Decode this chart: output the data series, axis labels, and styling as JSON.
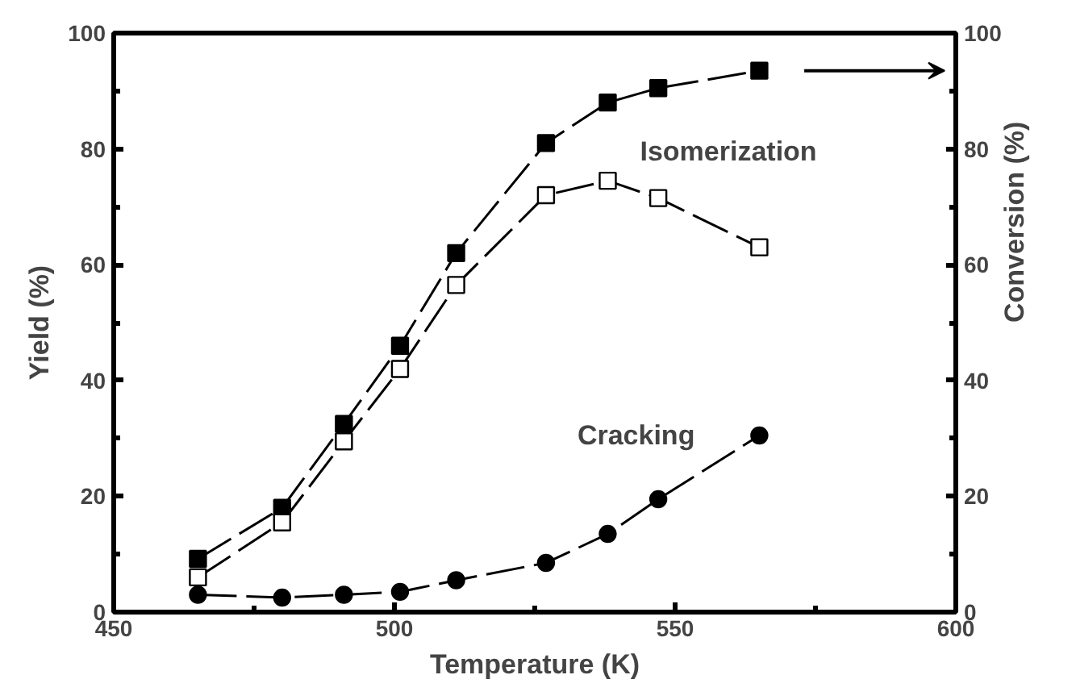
{
  "chart_data": {
    "type": "line",
    "xlabel": "Temperature (K)",
    "ylabel": "Yield (%)",
    "y2label": "Conversion (%)",
    "x": [
      465,
      480,
      491,
      501,
      511,
      527,
      538,
      547,
      565
    ],
    "series": [
      {
        "color": "#000000",
        "axis": "y2",
        "marker": "square",
        "values": [
          9.2,
          18,
          32.5,
          46,
          62,
          81,
          88,
          90.5,
          93.5
        ]
      },
      {
        "name": "Isomerization",
        "color": "#000000",
        "marker": "square_open",
        "values": [
          6,
          15.5,
          29.5,
          42,
          56.5,
          72,
          74.5,
          71.5,
          63
        ]
      },
      {
        "name": "Cracking",
        "color": "#000000",
        "marker": "circle",
        "values": [
          3,
          2.5,
          3,
          3.5,
          5.5,
          8.5,
          13.5,
          19.5,
          30.5
        ]
      }
    ],
    "xlim": [
      450,
      600
    ],
    "xticks": [
      450,
      500,
      550,
      600
    ],
    "ylim": [
      0,
      100
    ],
    "yticks": [
      0,
      20,
      40,
      60,
      80,
      100
    ],
    "y2lim": [
      0,
      100
    ],
    "y2ticks": [
      0,
      20,
      40,
      60,
      80,
      100
    ],
    "line_style": "dashed",
    "grid": false
  }
}
